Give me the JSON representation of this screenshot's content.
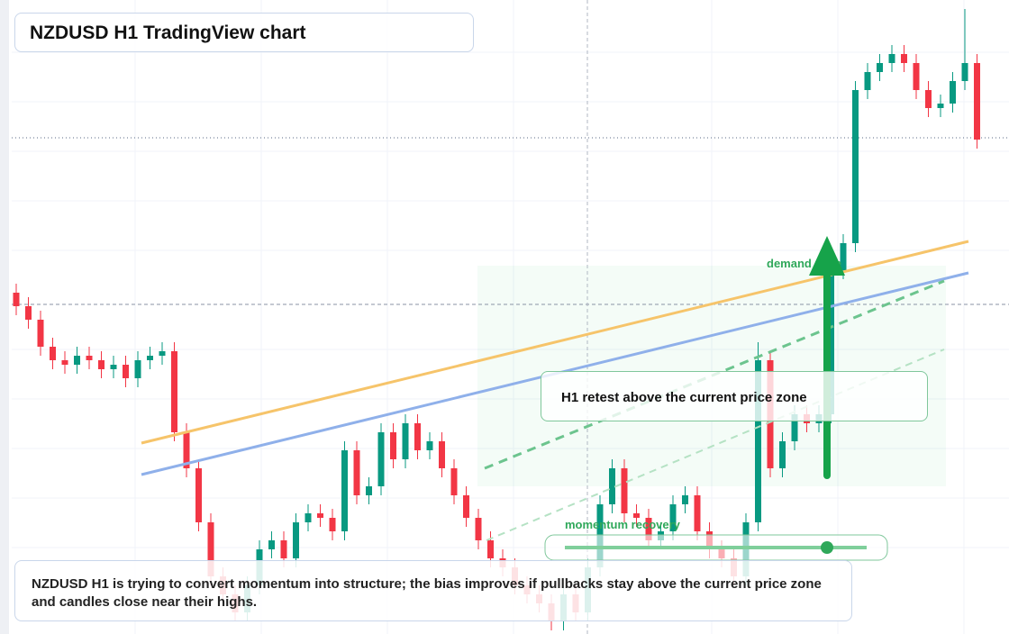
{
  "chart_data": {
    "type": "candlestick",
    "title": "NZDUSD H1 TradingView chart",
    "annotations": [
      "demand zone",
      "momentum recovery",
      "H1 retest above the current price zone",
      "NZDUSD H1 is trying to convert momentum into structure; the bias improves if pullbacks stay above the current price zone and candles close near their highs."
    ],
    "ylim": [
      0,
      704
    ],
    "up_color": "#089981",
    "down_color": "#f23645",
    "open": [
      379,
      364,
      349,
      319,
      304,
      299,
      309,
      304,
      294,
      299,
      284,
      304,
      309,
      314,
      224,
      184,
      124,
      64,
      44,
      24,
      54,
      94,
      104,
      84,
      124,
      134,
      129,
      114,
      204,
      154,
      164,
      224,
      194,
      234,
      204,
      214,
      184,
      154,
      129,
      104,
      84,
      74,
      54,
      44,
      34,
      14,
      44,
      24,
      74,
      144,
      184,
      134,
      129,
      104,
      114,
      144,
      154,
      114,
      94,
      84,
      64,
      124,
      304,
      184,
      214,
      244,
      234,
      244,
      404,
      434,
      604,
      624,
      634,
      644,
      634,
      604,
      584,
      589,
      614,
      634
    ],
    "high": [
      389,
      374,
      359,
      329,
      314,
      319,
      319,
      314,
      309,
      309,
      314,
      319,
      324,
      324,
      234,
      194,
      134,
      74,
      54,
      64,
      104,
      114,
      114,
      134,
      144,
      144,
      139,
      214,
      214,
      174,
      234,
      234,
      244,
      244,
      224,
      224,
      194,
      164,
      139,
      114,
      94,
      84,
      64,
      54,
      44,
      54,
      54,
      84,
      154,
      194,
      194,
      144,
      139,
      124,
      154,
      164,
      164,
      124,
      104,
      94,
      134,
      324,
      314,
      224,
      254,
      254,
      254,
      414,
      444,
      614,
      634,
      644,
      654,
      654,
      644,
      614,
      599,
      624,
      694,
      644
    ],
    "low": [
      354,
      339,
      309,
      294,
      289,
      289,
      294,
      284,
      284,
      274,
      274,
      294,
      299,
      214,
      174,
      114,
      54,
      34,
      14,
      14,
      44,
      84,
      74,
      74,
      114,
      119,
      104,
      104,
      144,
      144,
      154,
      184,
      184,
      194,
      194,
      174,
      144,
      119,
      94,
      74,
      64,
      44,
      34,
      24,
      4,
      4,
      14,
      14,
      64,
      134,
      124,
      119,
      94,
      94,
      104,
      134,
      104,
      84,
      74,
      54,
      54,
      114,
      174,
      174,
      204,
      224,
      224,
      234,
      394,
      424,
      594,
      614,
      624,
      624,
      594,
      574,
      574,
      579,
      604,
      539
    ],
    "close": [
      364,
      349,
      319,
      304,
      299,
      309,
      304,
      294,
      299,
      284,
      304,
      309,
      314,
      224,
      184,
      124,
      64,
      44,
      24,
      54,
      94,
      104,
      84,
      124,
      134,
      129,
      114,
      204,
      154,
      164,
      224,
      194,
      234,
      204,
      214,
      184,
      154,
      129,
      104,
      84,
      74,
      54,
      44,
      34,
      14,
      44,
      24,
      74,
      144,
      184,
      134,
      129,
      104,
      114,
      144,
      154,
      114,
      94,
      84,
      64,
      124,
      304,
      184,
      214,
      244,
      234,
      244,
      404,
      434,
      604,
      624,
      634,
      644,
      634,
      604,
      584,
      589,
      614,
      634,
      549
    ]
  }
}
